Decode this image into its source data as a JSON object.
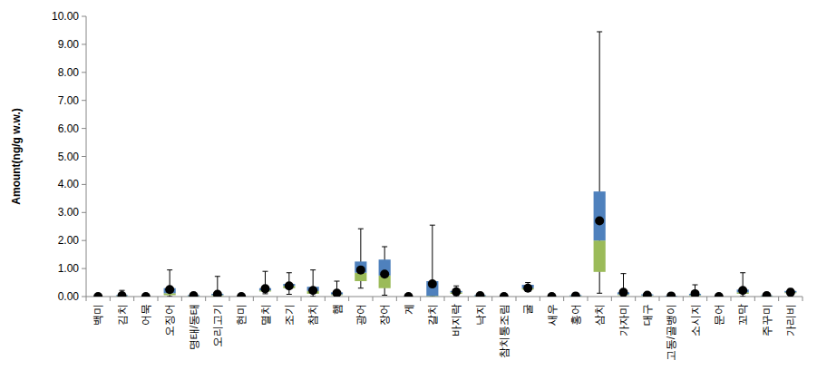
{
  "chart_data": {
    "type": "box",
    "y_label": "Amount(ng/g w.w.)",
    "categories": [
      "백미",
      "김치",
      "어묵",
      "오징어",
      "명태/동태",
      "오리고기",
      "현미",
      "멸치",
      "조기",
      "참치",
      "햄",
      "광어",
      "장어",
      "게",
      "갈치",
      "바지락",
      "낙지",
      "참치통조림",
      "굴",
      "새우",
      "홍어",
      "삼치",
      "가자미",
      "대구",
      "고동/골뱅이",
      "소시지",
      "문어",
      "꼬막",
      "주꾸미",
      "가리비"
    ],
    "min": [
      0,
      0,
      0,
      0,
      0,
      0,
      0,
      0.1,
      0.08,
      0,
      0,
      0.3,
      0.05,
      0,
      0,
      0,
      0,
      0,
      0.18,
      0,
      0,
      0.12,
      0,
      0,
      0,
      0,
      0,
      0,
      0,
      0.08
    ],
    "q1": [
      0,
      0,
      0,
      0.05,
      0,
      0.02,
      0,
      0.18,
      0.3,
      0.1,
      0.05,
      0.55,
      0.3,
      0,
      0,
      0.1,
      0,
      0,
      0.25,
      0,
      0,
      0.88,
      0.05,
      0.02,
      0,
      0.02,
      0,
      0.1,
      0,
      0.12
    ],
    "median": [
      0,
      0.02,
      0,
      0.12,
      0.02,
      0.05,
      0,
      0.22,
      0.38,
      0.2,
      0.08,
      0.85,
      0.75,
      0,
      0.02,
      0.15,
      0.02,
      0,
      0.3,
      0,
      0.02,
      2.0,
      0.08,
      0.04,
      0.01,
      0.05,
      0,
      0.15,
      0.02,
      0.15
    ],
    "q3": [
      0,
      0.05,
      0,
      0.3,
      0.05,
      0.1,
      0,
      0.3,
      0.45,
      0.35,
      0.15,
      1.25,
      1.32,
      0,
      0.55,
      0.2,
      0.05,
      0,
      0.42,
      0,
      0.05,
      3.75,
      0.15,
      0.08,
      0.03,
      0.1,
      0,
      0.25,
      0.04,
      0.2
    ],
    "max": [
      0,
      0.22,
      0,
      0.95,
      0.1,
      0.72,
      0,
      0.9,
      0.85,
      0.95,
      0.55,
      2.42,
      1.78,
      0,
      2.55,
      0.38,
      0.1,
      0,
      0.5,
      0,
      0.1,
      9.45,
      0.82,
      0.12,
      0.05,
      0.42,
      0,
      0.85,
      0.06,
      0.28
    ],
    "mean": [
      0,
      0.03,
      0,
      0.25,
      0.03,
      0.08,
      0,
      0.28,
      0.38,
      0.22,
      0.12,
      0.95,
      0.8,
      0,
      0.45,
      0.17,
      0.03,
      0,
      0.3,
      0,
      0.02,
      2.7,
      0.15,
      0.05,
      0.02,
      0.1,
      0,
      0.22,
      0.03,
      0.15
    ],
    "ylim": [
      0,
      10
    ],
    "yticks": [
      {
        "value": 0,
        "label": "0.00"
      },
      {
        "value": 1,
        "label": "1.00"
      },
      {
        "value": 2,
        "label": "2.00"
      },
      {
        "value": 3,
        "label": "3.00"
      },
      {
        "value": 4,
        "label": "4.00"
      },
      {
        "value": 5,
        "label": "5.00"
      },
      {
        "value": 6,
        "label": "6.00"
      },
      {
        "value": 7,
        "label": "7.00"
      },
      {
        "value": 8,
        "label": "8.00"
      },
      {
        "value": 9,
        "label": "9.00"
      },
      {
        "value": 10,
        "label": "10.00"
      }
    ],
    "grid": false
  }
}
